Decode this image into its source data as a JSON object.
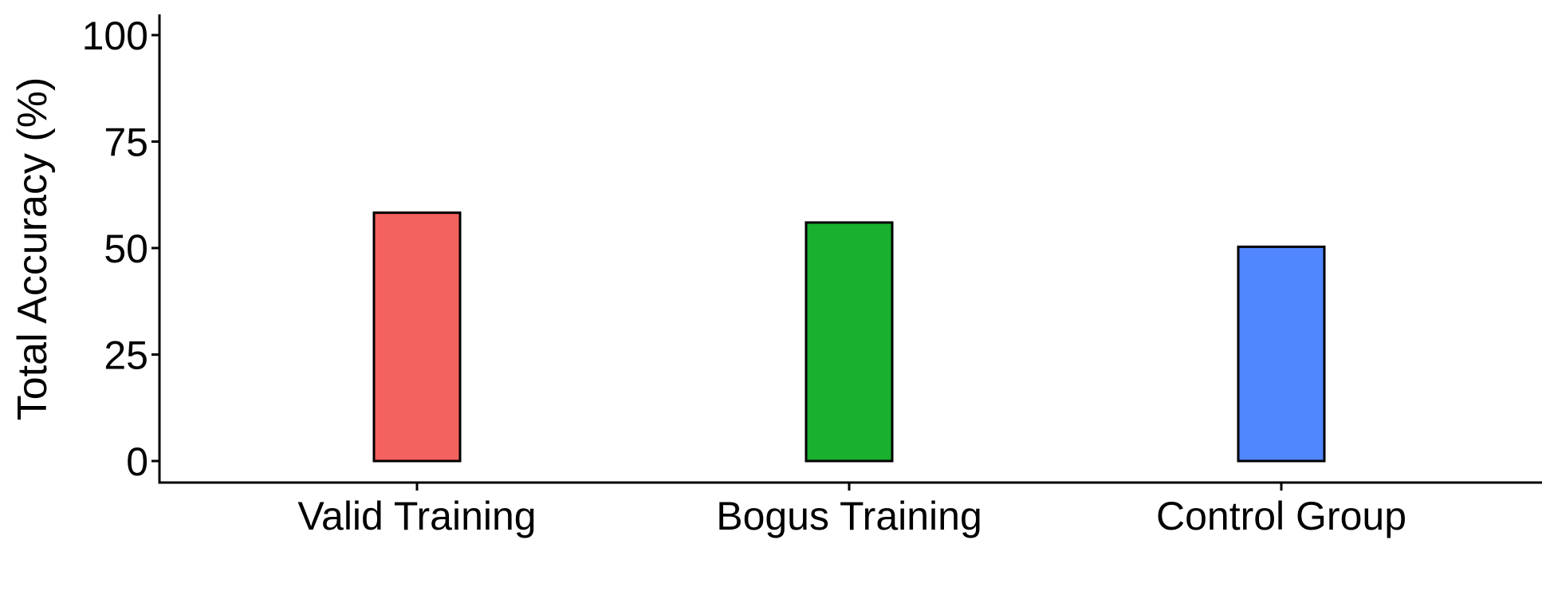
{
  "chart_data": {
    "type": "bar",
    "title": "",
    "xlabel": "",
    "ylabel": "Total Accuracy (%)",
    "categories": [
      "Valid Training",
      "Bogus Training",
      "Control Group"
    ],
    "values": [
      58.3,
      56.0,
      50.3
    ],
    "colors": [
      "#F3625E",
      "#19B02F",
      "#5086FE"
    ],
    "bar_outline_color": "#000000",
    "ylim": [
      0,
      100
    ],
    "yticks": [
      0,
      25,
      50,
      75,
      100
    ],
    "grid": false,
    "legend": "none"
  }
}
